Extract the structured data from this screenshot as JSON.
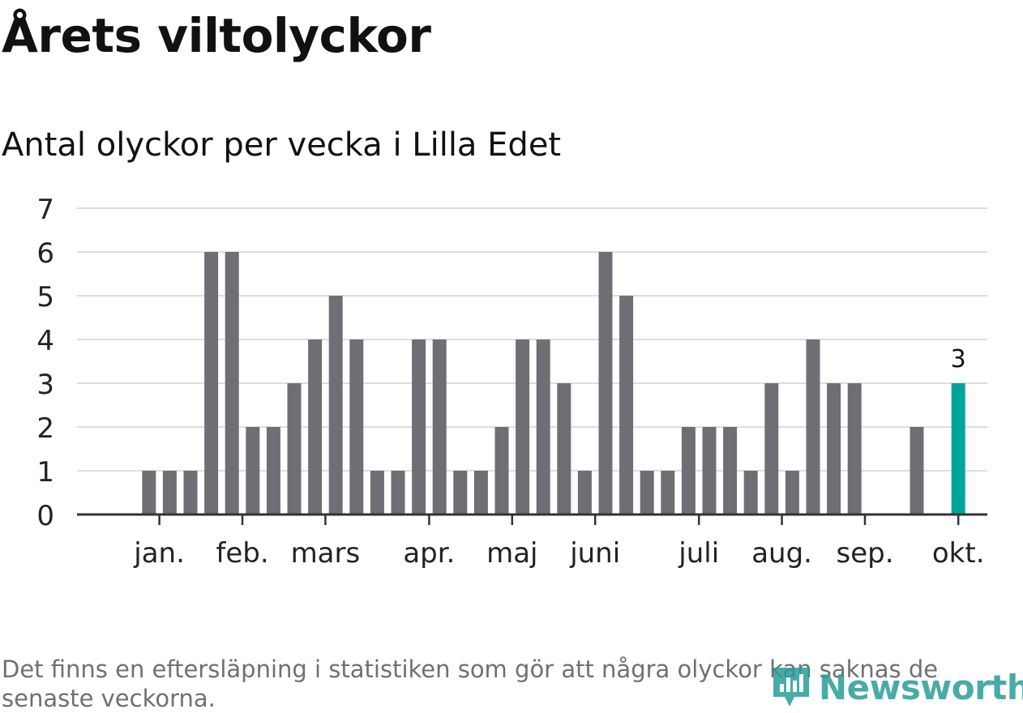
{
  "title": "Årets viltolyckor",
  "subtitle": "Antal olyckor per vecka i Lilla Edet",
  "footnote": "Det finns en eftersläpning i statistiken som gör att några olyckor kan saknas de senaste veckorna.",
  "logo": {
    "text": "Newsworthy",
    "icon": "bar-chart-logo-icon",
    "color": "#2a9d97"
  },
  "colors": {
    "bar": "#706e74",
    "highlight": "#00a59a",
    "grid": "#dddddd",
    "axis": "#333333"
  },
  "chart_data": {
    "type": "bar",
    "title": "Årets viltolyckor",
    "subtitle": "Antal olyckor per vecka i Lilla Edet",
    "xlabel": "",
    "ylabel": "",
    "ylim": [
      0,
      7
    ],
    "yticks": [
      0,
      1,
      2,
      3,
      4,
      5,
      6,
      7
    ],
    "grid": true,
    "weeks": [
      1,
      2,
      3,
      4,
      5,
      6,
      7,
      8,
      9,
      10,
      11,
      12,
      13,
      14,
      15,
      16,
      17,
      18,
      19,
      20,
      21,
      22,
      23,
      24,
      25,
      26,
      27,
      28,
      29,
      30,
      31,
      32,
      33,
      34,
      35,
      36,
      37,
      38,
      39,
      40,
      41,
      42,
      43,
      44
    ],
    "values": [
      0,
      0,
      1,
      1,
      1,
      6,
      6,
      2,
      2,
      3,
      4,
      5,
      4,
      1,
      1,
      4,
      4,
      1,
      1,
      2,
      4,
      4,
      3,
      1,
      6,
      5,
      1,
      1,
      2,
      2,
      2,
      1,
      3,
      1,
      4,
      3,
      3,
      0,
      0,
      2,
      0,
      3,
      0,
      0
    ],
    "highlight_week": 42,
    "highlight_label": "3",
    "month_ticks": [
      {
        "label": "jan.",
        "week": 3.5
      },
      {
        "label": "feb.",
        "week": 7.5
      },
      {
        "label": "mars",
        "week": 11.5
      },
      {
        "label": "apr.",
        "week": 16.5
      },
      {
        "label": "maj",
        "week": 20.5
      },
      {
        "label": "juni",
        "week": 24.5
      },
      {
        "label": "juli",
        "week": 29.5
      },
      {
        "label": "aug.",
        "week": 33.5
      },
      {
        "label": "sep.",
        "week": 37.5
      },
      {
        "label": "okt.",
        "week": 42
      }
    ]
  }
}
